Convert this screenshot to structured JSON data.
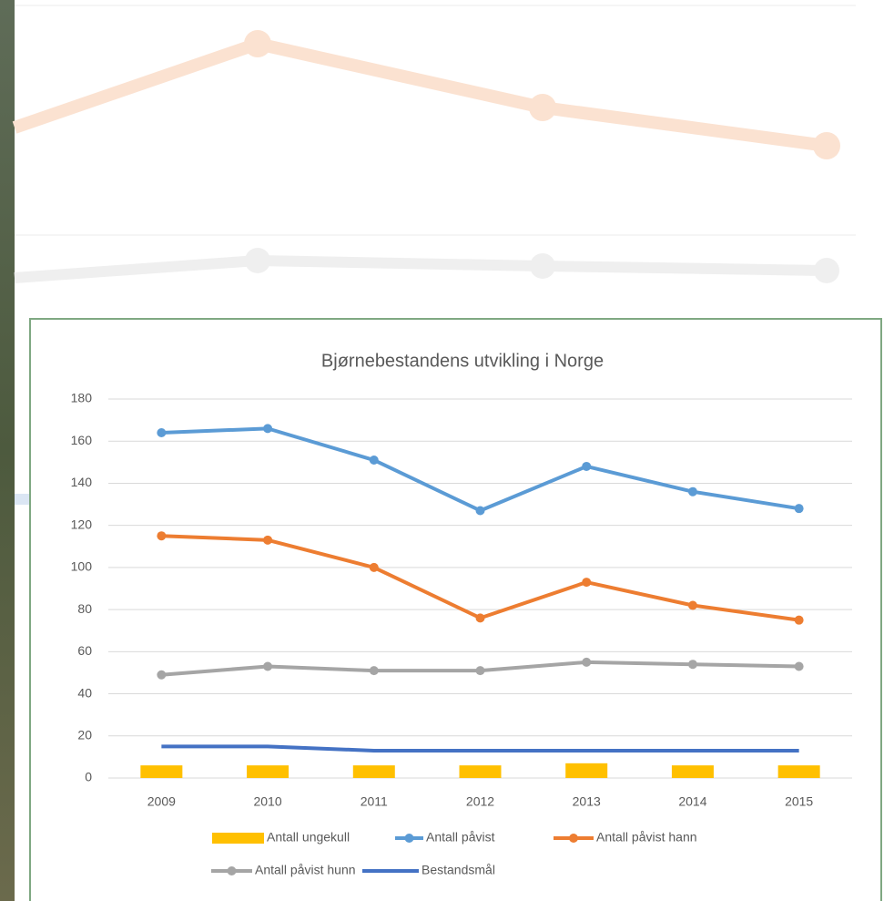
{
  "chart_data": {
    "type": "line",
    "title": "Bjørnebestandens utvikling i Norge",
    "categories": [
      "2009",
      "2010",
      "2011",
      "2012",
      "2013",
      "2014",
      "2015"
    ],
    "series": [
      {
        "name": "Antall ungekull",
        "type": "bar",
        "color": "#ffc000",
        "values": [
          6,
          6,
          6,
          6,
          7,
          6,
          6
        ]
      },
      {
        "name": "Antall påvist",
        "type": "line",
        "marker": true,
        "color": "#5b9bd5",
        "values": [
          164,
          166,
          151,
          127,
          148,
          136,
          128
        ]
      },
      {
        "name": "Antall påvist hann",
        "type": "line",
        "marker": true,
        "color": "#ed7d31",
        "values": [
          115,
          113,
          100,
          76,
          93,
          82,
          75
        ]
      },
      {
        "name": "Antall påvist hunn",
        "type": "line",
        "marker": true,
        "color": "#a5a5a5",
        "values": [
          49,
          53,
          51,
          51,
          55,
          54,
          53
        ]
      },
      {
        "name": "Bestandsmål",
        "type": "line",
        "marker": false,
        "color": "#4472c4",
        "values": [
          15,
          15,
          13,
          13,
          13,
          13,
          13
        ]
      }
    ],
    "ylim": [
      0,
      180
    ],
    "yticks": [
      0,
      20,
      40,
      60,
      80,
      100,
      120,
      140,
      160,
      180
    ],
    "grid": true,
    "legend": "bottom"
  }
}
